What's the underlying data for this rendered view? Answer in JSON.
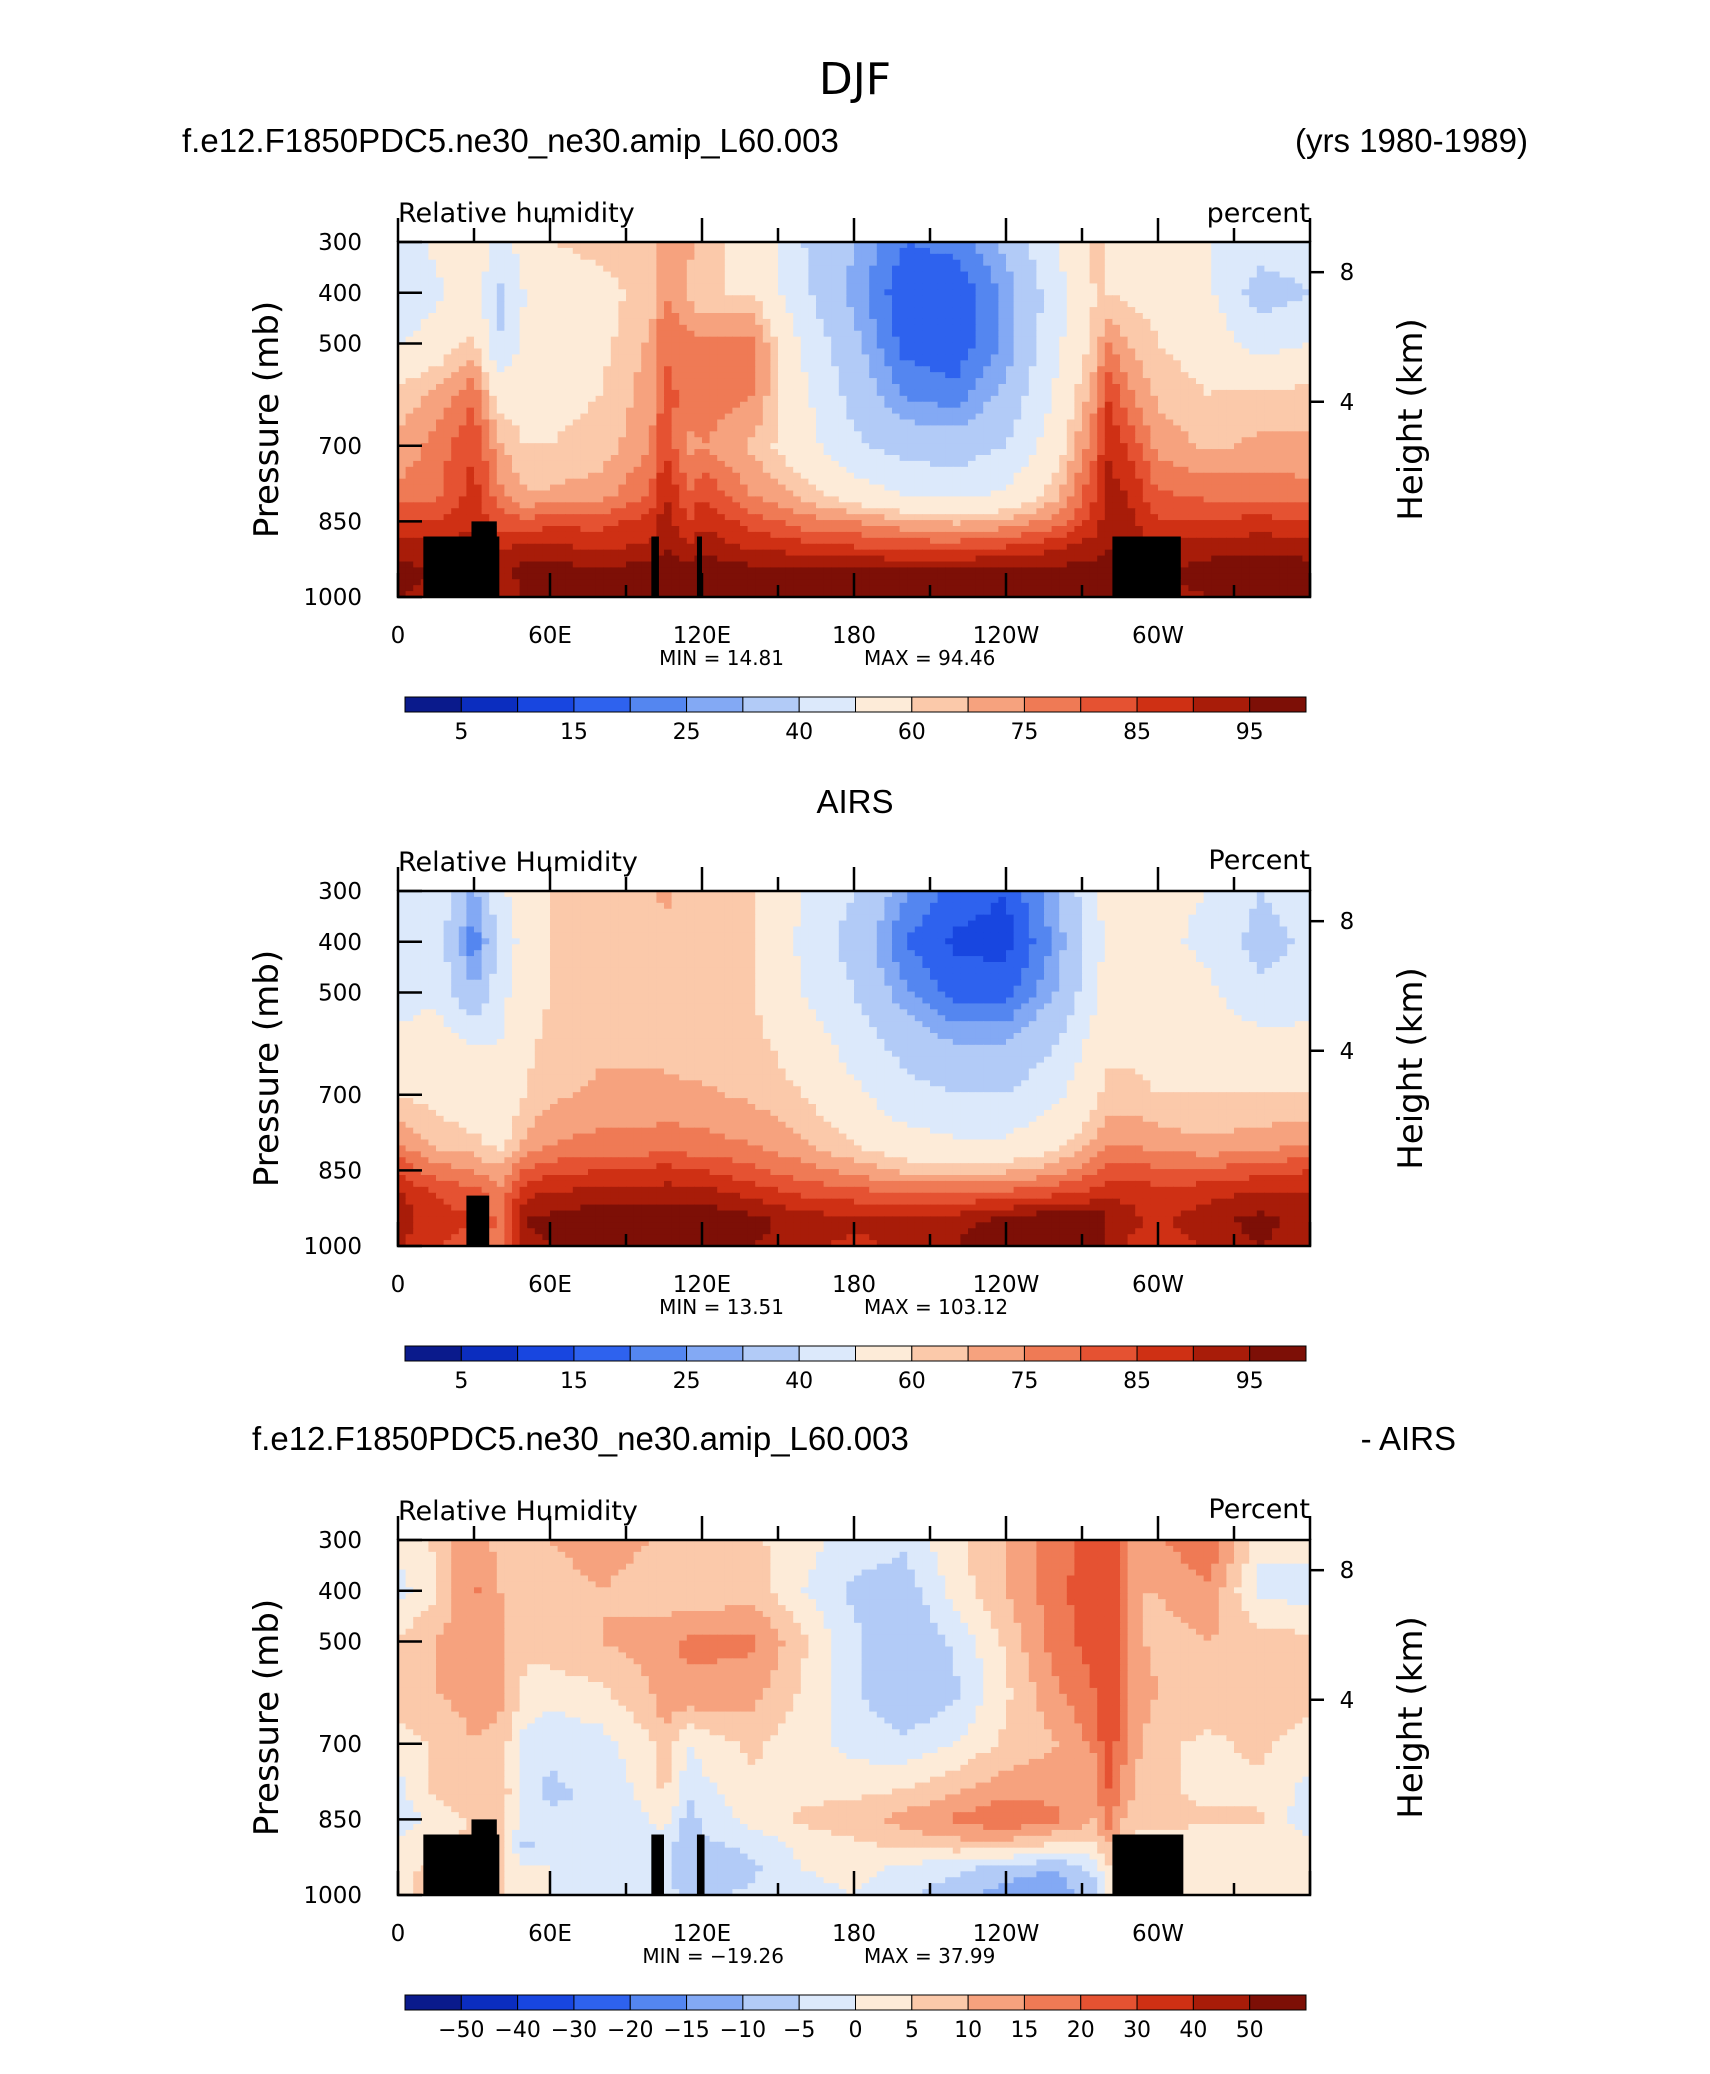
{
  "figure": {
    "title": "DJF"
  },
  "colors": {
    "rh_scale": [
      "#0a1a8c",
      "#0b2dbf",
      "#1846e0",
      "#2e62ee",
      "#5486f0",
      "#83a9f4",
      "#b2cbf7",
      "#dce9fb",
      "#fdebd8",
      "#fbc9aa",
      "#f6a27e",
      "#ef7a55",
      "#e55232",
      "#cf3014",
      "#a81c09",
      "#7d0f06"
    ],
    "diff_scale": [
      "#0a1a8c",
      "#0b2dbf",
      "#1846e0",
      "#2e62ee",
      "#5486f0",
      "#83a9f4",
      "#b2cbf7",
      "#dce9fb",
      "#fdebd8",
      "#fbc9aa",
      "#f6a27e",
      "#ef7a55",
      "#e55232",
      "#cf3014",
      "#a81c09",
      "#7d0f06"
    ],
    "land": "#000000"
  },
  "chart_data": [
    {
      "type": "heatmap",
      "header_left": "f.e12.F1850PDC5.ne30_ne30.amip_L60.003",
      "header_right": "(yrs 1980-1989)",
      "header_center": "",
      "left_label": "Relative humidity",
      "right_label": "percent",
      "ylabel": "Pressure (mb)",
      "y2label": "Height (km)",
      "x_ticks": [
        "0",
        "60E",
        "120E",
        "180",
        "120W",
        "60W"
      ],
      "y_ticks": [
        "300",
        "400",
        "500",
        "700",
        "850",
        "1000"
      ],
      "y2_ticks": [
        "8",
        "4"
      ],
      "min_text": "MIN =   14.81",
      "max_text": "MAX =   94.46",
      "colorbar_labels": [
        "5",
        "15",
        "25",
        "40",
        "60",
        "75",
        "85",
        "95"
      ],
      "levels": [
        5,
        10,
        15,
        20,
        25,
        30,
        40,
        50,
        60,
        65,
        70,
        75,
        80,
        85,
        90,
        95
      ],
      "scale": "rh_scale",
      "orography": [
        {
          "lon": [
            10,
            40
          ],
          "p_top": 880
        },
        {
          "lon": [
            29,
            39
          ],
          "p_top": 850
        },
        {
          "lon": [
            100,
            103
          ],
          "p_top": 880
        },
        {
          "lon": [
            118,
            120
          ],
          "p_top": 880
        },
        {
          "lon": [
            282,
            309
          ],
          "p_top": 880
        }
      ],
      "field": {
        "lon": [
          0,
          15,
          30,
          40,
          50,
          60,
          80,
          100,
          105,
          115,
          120,
          140,
          160,
          180,
          200,
          220,
          240,
          260,
          275,
          280,
          290,
          300,
          320,
          340,
          360
        ],
        "p": [
          300,
          400,
          500,
          600,
          700,
          800,
          850,
          900,
          950,
          1000
        ],
        "values": [
          [
            45,
            52,
            60,
            45,
            55,
            60,
            62,
            64,
            70,
            66,
            62,
            58,
            40,
            30,
            20,
            22,
            32,
            50,
            62,
            60,
            56,
            56,
            50,
            45,
            45
          ],
          [
            40,
            48,
            55,
            38,
            50,
            55,
            58,
            62,
            70,
            64,
            60,
            60,
            42,
            28,
            16,
            15,
            26,
            46,
            60,
            60,
            58,
            58,
            52,
            35,
            40
          ],
          [
            50,
            55,
            62,
            40,
            52,
            56,
            58,
            66,
            75,
            72,
            72,
            72,
            48,
            32,
            18,
            16,
            26,
            48,
            62,
            70,
            64,
            60,
            56,
            46,
            50
          ],
          [
            62,
            66,
            74,
            56,
            56,
            58,
            60,
            68,
            76,
            74,
            74,
            70,
            52,
            36,
            24,
            22,
            32,
            52,
            68,
            80,
            70,
            64,
            60,
            62,
            62
          ],
          [
            66,
            72,
            80,
            66,
            60,
            60,
            62,
            70,
            80,
            68,
            70,
            64,
            54,
            42,
            36,
            34,
            40,
            56,
            74,
            84,
            78,
            68,
            64,
            66,
            66
          ],
          [
            72,
            74,
            82,
            72,
            66,
            66,
            68,
            76,
            86,
            76,
            80,
            70,
            64,
            56,
            50,
            48,
            52,
            64,
            80,
            88,
            84,
            76,
            74,
            74,
            72
          ],
          [
            80,
            80,
            84,
            78,
            76,
            78,
            78,
            82,
            88,
            80,
            84,
            78,
            72,
            70,
            66,
            64,
            66,
            72,
            82,
            88,
            86,
            80,
            80,
            82,
            80
          ],
          [
            88,
            86,
            88,
            84,
            86,
            86,
            84,
            86,
            90,
            86,
            88,
            84,
            82,
            80,
            78,
            78,
            80,
            84,
            88,
            90,
            88,
            86,
            88,
            88,
            88
          ],
          [
            92,
            90,
            90,
            88,
            92,
            92,
            92,
            92,
            94,
            92,
            94,
            92,
            92,
            92,
            92,
            92,
            92,
            92,
            92,
            92,
            92,
            90,
            92,
            94,
            92
          ],
          [
            90,
            88,
            88,
            86,
            90,
            90,
            90,
            90,
            92,
            90,
            92,
            90,
            90,
            90,
            90,
            90,
            90,
            90,
            90,
            90,
            90,
            88,
            90,
            90,
            90
          ]
        ]
      }
    },
    {
      "type": "heatmap",
      "header_left": "",
      "header_right": "",
      "header_center": "AIRS",
      "left_label": "Relative Humidity",
      "right_label": "Percent",
      "ylabel": "Pressure (mb)",
      "y2label": "Height (km)",
      "x_ticks": [
        "0",
        "60E",
        "120E",
        "180",
        "120W",
        "60W"
      ],
      "y_ticks": [
        "300",
        "400",
        "500",
        "700",
        "850",
        "1000"
      ],
      "y2_ticks": [
        "8",
        "4"
      ],
      "min_text": "MIN =   13.51",
      "max_text": "MAX =  103.12",
      "colorbar_labels": [
        "5",
        "15",
        "25",
        "40",
        "60",
        "75",
        "85",
        "95"
      ],
      "levels": [
        5,
        10,
        15,
        20,
        25,
        30,
        40,
        50,
        60,
        65,
        70,
        75,
        80,
        85,
        90,
        95
      ],
      "scale": "rh_scale",
      "orography": [
        {
          "lon": [
            27,
            36
          ],
          "p_top": 900
        }
      ],
      "field": {
        "lon": [
          0,
          15,
          30,
          40,
          50,
          60,
          80,
          100,
          105,
          115,
          120,
          140,
          160,
          180,
          200,
          220,
          240,
          260,
          275,
          280,
          290,
          300,
          320,
          340,
          360
        ],
        "p": [
          300,
          400,
          500,
          600,
          700,
          800,
          850,
          900,
          950,
          1000
        ],
        "values": [
          [
            45,
            48,
            28,
            48,
            56,
            60,
            62,
            64,
            66,
            64,
            62,
            60,
            50,
            40,
            26,
            18,
            15,
            30,
            48,
            55,
            54,
            52,
            50,
            40,
            45
          ],
          [
            42,
            46,
            20,
            42,
            54,
            60,
            62,
            64,
            64,
            62,
            62,
            60,
            48,
            36,
            20,
            14,
            13,
            26,
            46,
            52,
            50,
            52,
            48,
            36,
            42
          ],
          [
            44,
            48,
            30,
            46,
            56,
            60,
            62,
            64,
            64,
            62,
            62,
            60,
            50,
            40,
            26,
            18,
            18,
            30,
            48,
            55,
            54,
            54,
            52,
            42,
            44
          ],
          [
            54,
            56,
            50,
            50,
            58,
            62,
            64,
            64,
            64,
            62,
            62,
            62,
            56,
            46,
            36,
            30,
            30,
            40,
            54,
            58,
            58,
            56,
            56,
            54,
            54
          ],
          [
            60,
            58,
            54,
            52,
            60,
            64,
            66,
            66,
            66,
            66,
            66,
            64,
            60,
            52,
            44,
            40,
            40,
            48,
            58,
            62,
            62,
            60,
            60,
            60,
            60
          ],
          [
            70,
            64,
            62,
            58,
            66,
            70,
            72,
            72,
            74,
            72,
            72,
            70,
            66,
            60,
            54,
            52,
            52,
            58,
            66,
            70,
            70,
            68,
            66,
            68,
            70
          ],
          [
            80,
            72,
            70,
            66,
            76,
            78,
            80,
            80,
            82,
            80,
            80,
            76,
            72,
            68,
            64,
            64,
            64,
            68,
            74,
            78,
            78,
            76,
            76,
            78,
            80
          ],
          [
            86,
            80,
            78,
            72,
            84,
            86,
            88,
            88,
            88,
            88,
            88,
            84,
            80,
            78,
            76,
            76,
            78,
            80,
            82,
            84,
            84,
            82,
            84,
            86,
            86
          ],
          [
            88,
            82,
            80,
            74,
            90,
            92,
            94,
            95,
            96,
            95,
            95,
            92,
            88,
            86,
            86,
            88,
            92,
            96,
            96,
            90,
            86,
            84,
            88,
            92,
            88
          ],
          [
            86,
            80,
            78,
            72,
            88,
            90,
            92,
            92,
            94,
            92,
            92,
            90,
            86,
            84,
            86,
            90,
            95,
            100,
            97,
            88,
            84,
            82,
            86,
            90,
            86
          ]
        ]
      }
    },
    {
      "type": "heatmap",
      "header_left": "f.e12.F1850PDC5.ne30_ne30.amip_L60.003",
      "header_right": "- AIRS",
      "header_center": "",
      "left_label": "Relative Humidity",
      "right_label": "Percent",
      "ylabel": "Pressure (mb)",
      "y2label": "Height (km)",
      "x_ticks": [
        "0",
        "60E",
        "120E",
        "180",
        "120W",
        "60W"
      ],
      "y_ticks": [
        "300",
        "400",
        "500",
        "700",
        "850",
        "1000"
      ],
      "y2_ticks": [
        "8",
        "4"
      ],
      "min_text": "MIN = −19.26",
      "max_text": "MAX =   37.99",
      "colorbar_labels": [
        "−50",
        "−40",
        "−30",
        "−20",
        "−15",
        "−10",
        "−5",
        "0",
        "5",
        "10",
        "15",
        "20",
        "30",
        "40",
        "50"
      ],
      "levels": [
        -50,
        -40,
        -30,
        -20,
        -15,
        -10,
        -5,
        0,
        5,
        10,
        15,
        20,
        30,
        40,
        50
      ],
      "scale": "diff_scale",
      "orography": [
        {
          "lon": [
            10,
            40
          ],
          "p_top": 880
        },
        {
          "lon": [
            29,
            39
          ],
          "p_top": 850
        },
        {
          "lon": [
            100,
            105
          ],
          "p_top": 880
        },
        {
          "lon": [
            118,
            121
          ],
          "p_top": 880
        },
        {
          "lon": [
            282,
            310
          ],
          "p_top": 880
        }
      ],
      "field": {
        "lon": [
          0,
          15,
          30,
          40,
          50,
          60,
          80,
          100,
          105,
          115,
          120,
          140,
          160,
          180,
          200,
          220,
          240,
          260,
          275,
          280,
          290,
          300,
          320,
          340,
          360
        ],
        "p": [
          300,
          400,
          500,
          600,
          700,
          800,
          850,
          900,
          950,
          1000
        ],
        "values": [
          [
            2,
            6,
            14,
            8,
            6,
            10,
            12,
            10,
            6,
            8,
            8,
            6,
            2,
            -2,
            -4,
            4,
            10,
            18,
            22,
            28,
            10,
            14,
            20,
            2,
            2
          ],
          [
            -2,
            4,
            16,
            10,
            6,
            8,
            10,
            8,
            6,
            6,
            6,
            8,
            0,
            -6,
            -8,
            2,
            10,
            18,
            24,
            30,
            10,
            10,
            14,
            -2,
            -2
          ],
          [
            6,
            10,
            14,
            12,
            6,
            8,
            10,
            12,
            14,
            16,
            16,
            16,
            6,
            -4,
            -10,
            -4,
            6,
            18,
            22,
            26,
            12,
            8,
            10,
            8,
            6
          ],
          [
            8,
            10,
            12,
            12,
            4,
            2,
            4,
            10,
            14,
            14,
            14,
            12,
            4,
            -4,
            -10,
            -6,
            4,
            14,
            20,
            26,
            14,
            10,
            8,
            10,
            8
          ],
          [
            2,
            6,
            10,
            8,
            -2,
            -4,
            -2,
            4,
            8,
            0,
            2,
            6,
            2,
            -2,
            -4,
            0,
            6,
            10,
            16,
            24,
            12,
            6,
            4,
            6,
            2
          ],
          [
            -2,
            6,
            8,
            10,
            -4,
            -6,
            -4,
            2,
            6,
            -4,
            -2,
            4,
            4,
            4,
            6,
            10,
            14,
            14,
            12,
            20,
            10,
            6,
            4,
            4,
            -2
          ],
          [
            -4,
            2,
            6,
            6,
            -2,
            -4,
            -4,
            0,
            2,
            -8,
            -4,
            2,
            6,
            8,
            12,
            16,
            20,
            16,
            10,
            18,
            6,
            6,
            6,
            6,
            -4
          ],
          [
            2,
            4,
            6,
            6,
            -6,
            -4,
            -4,
            -2,
            -2,
            -10,
            -6,
            -4,
            2,
            4,
            6,
            8,
            8,
            4,
            4,
            10,
            4,
            4,
            2,
            2,
            2
          ],
          [
            4,
            6,
            6,
            6,
            2,
            0,
            -4,
            -4,
            -4,
            -10,
            -8,
            -6,
            0,
            2,
            -2,
            -4,
            -8,
            -10,
            -4,
            4,
            2,
            4,
            2,
            2,
            4
          ],
          [
            4,
            6,
            6,
            6,
            2,
            0,
            -2,
            -2,
            -2,
            -8,
            -6,
            -4,
            -2,
            0,
            -4,
            -8,
            -12,
            -14,
            -6,
            2,
            4,
            6,
            4,
            2,
            4
          ]
        ]
      }
    }
  ]
}
